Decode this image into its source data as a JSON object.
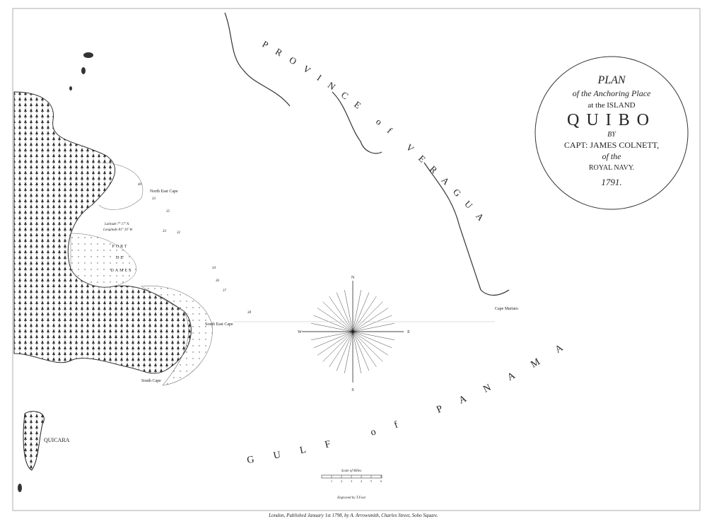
{
  "cartouche": {
    "line1": "PLAN",
    "line2": "of the Anchoring Place",
    "line3": "at the ISLAND",
    "line4": "QUIBO",
    "line5": "BY",
    "line6": "CAPT: JAMES COLNETT,",
    "line7": "of the",
    "line8": "ROYAL NAVY.",
    "year": "1791."
  },
  "labels": {
    "province": "PROVINCE of VERAGUA",
    "north_east_cape": "North East Cape",
    "latitude": "Latitude 7° 17' N.",
    "longitude": "Longitude 81° 10' W.",
    "port1": "PORT",
    "port2": "DE",
    "port3": "DAMES",
    "south_east_cape": "South East Cape",
    "south_cape": "South Cape",
    "cape_mariato": "Cape Mariato",
    "quicara": "QUICARA",
    "gulf": "GULF of PANAMA"
  },
  "compass": {
    "n": "N",
    "e": "E",
    "s": "S",
    "w": "W"
  },
  "soundings": [
    "40",
    "35",
    "33",
    "32",
    "33",
    "34",
    "36",
    "37",
    "38"
  ],
  "scale": {
    "title": "Scale of Miles",
    "ticks": [
      "1",
      "2",
      "3",
      "4",
      "5",
      "6"
    ]
  },
  "footer": {
    "engraver": "Engraved by T.Foot",
    "imprint": "London, Published January 1st 1798, by A. Arrowsmith, Charles Street, Soho Square."
  }
}
